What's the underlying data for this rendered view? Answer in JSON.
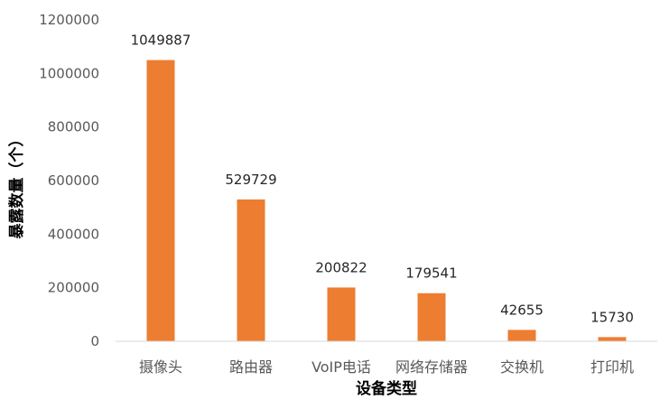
{
  "chart_data": {
    "type": "bar",
    "categories": [
      "摄像头",
      "路由器",
      "VoIP电话",
      "网络存储器",
      "交换机",
      "打印机"
    ],
    "values": [
      1049887,
      529729,
      200822,
      179541,
      42655,
      15730
    ],
    "data_labels": [
      "1049887",
      "529729",
      "200822",
      "179541",
      "42655",
      "15730"
    ],
    "xlabel": "设备类型",
    "ylabel": "暴露数量（个）",
    "ylim": [
      0,
      1200000
    ],
    "yticks": [
      0,
      200000,
      400000,
      600000,
      800000,
      1000000,
      1200000
    ],
    "ytick_labels": [
      "0",
      "200000",
      "400000",
      "600000",
      "800000",
      "1000000",
      "1200000"
    ],
    "grid": false,
    "bar_color": "#ED7D31",
    "axis_color": "#D9D9D9"
  }
}
